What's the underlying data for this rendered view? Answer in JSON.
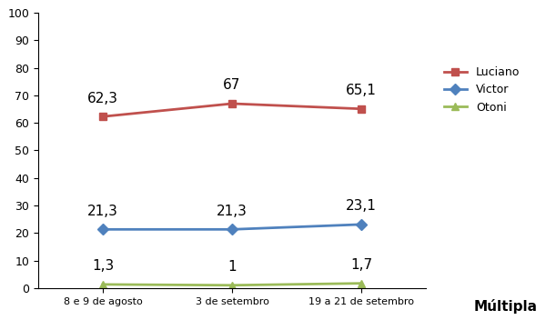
{
  "chart_data": {
    "type": "line",
    "categories": [
      "8 e 9 de agosto",
      "3 de setembro",
      "19 a 21 de setembro"
    ],
    "series": [
      {
        "name": "Luciano",
        "color": "#c0504d",
        "marker": "square",
        "values": [
          62.3,
          67,
          65.1
        ],
        "value_labels": [
          "62,3",
          "67",
          "65,1"
        ]
      },
      {
        "name": "Victor",
        "color": "#4f81bd",
        "marker": "diamond",
        "values": [
          21.3,
          21.3,
          23.1
        ],
        "value_labels": [
          "21,3",
          "21,3",
          "23,1"
        ]
      },
      {
        "name": "Otoni",
        "color": "#9bbb59",
        "marker": "triangle",
        "values": [
          1.3,
          1,
          1.7
        ],
        "value_labels": [
          "1,3",
          "1",
          "1,7"
        ]
      }
    ],
    "ylim": [
      0,
      100
    ],
    "yticks": [
      0,
      10,
      20,
      30,
      40,
      50,
      60,
      70,
      80,
      90,
      100
    ],
    "grid": false,
    "legend": "right",
    "data_labels": true,
    "annotations": [
      "Múltipla"
    ]
  }
}
